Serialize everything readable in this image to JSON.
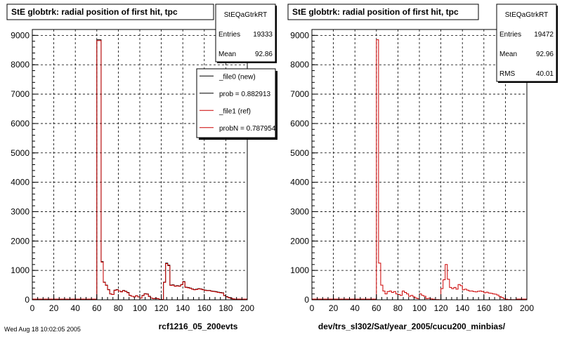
{
  "chart_data": [
    {
      "type": "histogram",
      "title": "StE globtrk: radial position of first hit, tpc",
      "xlabel": "rcf1216_05_200evts",
      "xlim": [
        0,
        200
      ],
      "ylim": [
        0,
        9200
      ],
      "x_ticks": [
        "0",
        "20",
        "40",
        "60",
        "80",
        "100",
        "120",
        "140",
        "160",
        "180",
        "200"
      ],
      "y_ticks": [
        "0",
        "1000",
        "2000",
        "3000",
        "4000",
        "5000",
        "6000",
        "7000",
        "8000",
        "9000"
      ],
      "grid": true,
      "stats": {
        "name": "StEQaGtrkRT",
        "rows": [
          {
            "label": "Entries",
            "value": "19333"
          },
          {
            "label": "Mean",
            "value": "92.86"
          }
        ]
      },
      "legend": {
        "placement": "top-right",
        "entries": [
          {
            "label": "_file0 (new)",
            "color": "#000000"
          },
          {
            "label": "prob = 0.882913",
            "color": "#000000"
          },
          {
            "label": "_file1 (ref)",
            "color": "#cc0000"
          },
          {
            "label": "probN = 0.787954",
            "color": "#cc0000"
          }
        ]
      },
      "bin_edges": [
        60,
        64,
        66,
        68,
        70,
        72,
        74,
        76,
        78,
        80,
        82,
        84,
        86,
        88,
        90,
        92,
        94,
        96,
        98,
        100,
        102,
        104,
        106,
        108,
        110,
        112,
        114,
        116,
        118,
        120,
        122,
        124,
        126,
        128,
        130,
        132,
        134,
        136,
        138,
        140,
        142,
        144,
        146,
        148,
        150,
        152,
        154,
        156,
        158,
        160,
        162,
        164,
        166,
        168,
        170,
        172,
        174,
        176,
        178,
        180,
        182,
        184,
        186,
        188,
        190
      ],
      "series": [
        {
          "color": "#000000",
          "values": [
            8850,
            1300,
            600,
            500,
            350,
            200,
            180,
            330,
            350,
            300,
            280,
            320,
            290,
            250,
            150,
            120,
            100,
            140,
            100,
            60,
            150,
            210,
            200,
            120,
            60,
            40,
            50,
            40,
            10,
            10,
            600,
            1250,
            1180,
            500,
            510,
            470,
            480,
            470,
            520,
            620,
            430,
            420,
            400,
            370,
            350,
            360,
            380,
            370,
            350,
            330,
            320,
            320,
            300,
            290,
            280,
            260,
            250,
            240,
            150,
            110,
            80,
            60,
            30,
            20
          ]
        },
        {
          "color": "#cc0000",
          "values": [
            8820,
            1280,
            590,
            490,
            340,
            200,
            180,
            320,
            340,
            300,
            270,
            310,
            280,
            240,
            150,
            120,
            100,
            140,
            100,
            60,
            140,
            200,
            190,
            110,
            60,
            40,
            50,
            40,
            10,
            10,
            590,
            1230,
            1160,
            490,
            500,
            460,
            470,
            460,
            510,
            610,
            420,
            410,
            390,
            360,
            340,
            350,
            370,
            360,
            340,
            320,
            310,
            310,
            290,
            280,
            270,
            250,
            240,
            230,
            140,
            100,
            70,
            50,
            30,
            20
          ]
        }
      ]
    },
    {
      "type": "histogram",
      "title": "StE globtrk: radial position of first hit, tpc",
      "xlabel": "dev/trs_sl302/Sat/year_2005/cucu200_minbias/",
      "xlim": [
        0,
        200
      ],
      "ylim": [
        0,
        9200
      ],
      "x_ticks": [
        "0",
        "20",
        "40",
        "60",
        "80",
        "100",
        "120",
        "140",
        "160",
        "180",
        "200"
      ],
      "y_ticks": [
        "0",
        "1000",
        "2000",
        "3000",
        "4000",
        "5000",
        "6000",
        "7000",
        "8000",
        "9000"
      ],
      "grid": true,
      "stats": {
        "name": "StEQaGtrkRT",
        "rows": [
          {
            "label": "Entries",
            "value": "19472"
          },
          {
            "label": "Mean",
            "value": "92.96"
          },
          {
            "label": "RMS",
            "value": "40.01"
          }
        ]
      },
      "bin_edges": [
        60,
        62,
        64,
        66,
        68,
        70,
        72,
        74,
        76,
        78,
        80,
        82,
        84,
        86,
        88,
        90,
        92,
        94,
        96,
        98,
        100,
        102,
        104,
        106,
        108,
        110,
        112,
        114,
        116,
        118,
        120,
        122,
        124,
        126,
        128,
        130,
        132,
        134,
        136,
        138,
        140,
        142,
        144,
        146,
        148,
        150,
        152,
        154,
        156,
        158,
        160,
        162,
        164,
        166,
        168,
        170,
        172,
        174,
        176,
        178,
        180,
        182,
        184,
        186,
        188,
        190
      ],
      "series": [
        {
          "color": "#cc0000",
          "values": [
            8850,
            1250,
            500,
            300,
            200,
            280,
            300,
            250,
            280,
            200,
            180,
            150,
            300,
            250,
            200,
            120,
            150,
            100,
            60,
            40,
            200,
            150,
            120,
            40,
            50,
            30,
            20,
            10,
            10,
            5,
            380,
            680,
            1200,
            700,
            420,
            380,
            420,
            360,
            520,
            480,
            340,
            360,
            330,
            300,
            300,
            280,
            270,
            290,
            300,
            280,
            240,
            260,
            230,
            220,
            200,
            190,
            160,
            110,
            80,
            40,
            20,
            10,
            5,
            5,
            5
          ]
        }
      ]
    }
  ],
  "footer_text": "Wed Aug 18 10:02:05 2005"
}
